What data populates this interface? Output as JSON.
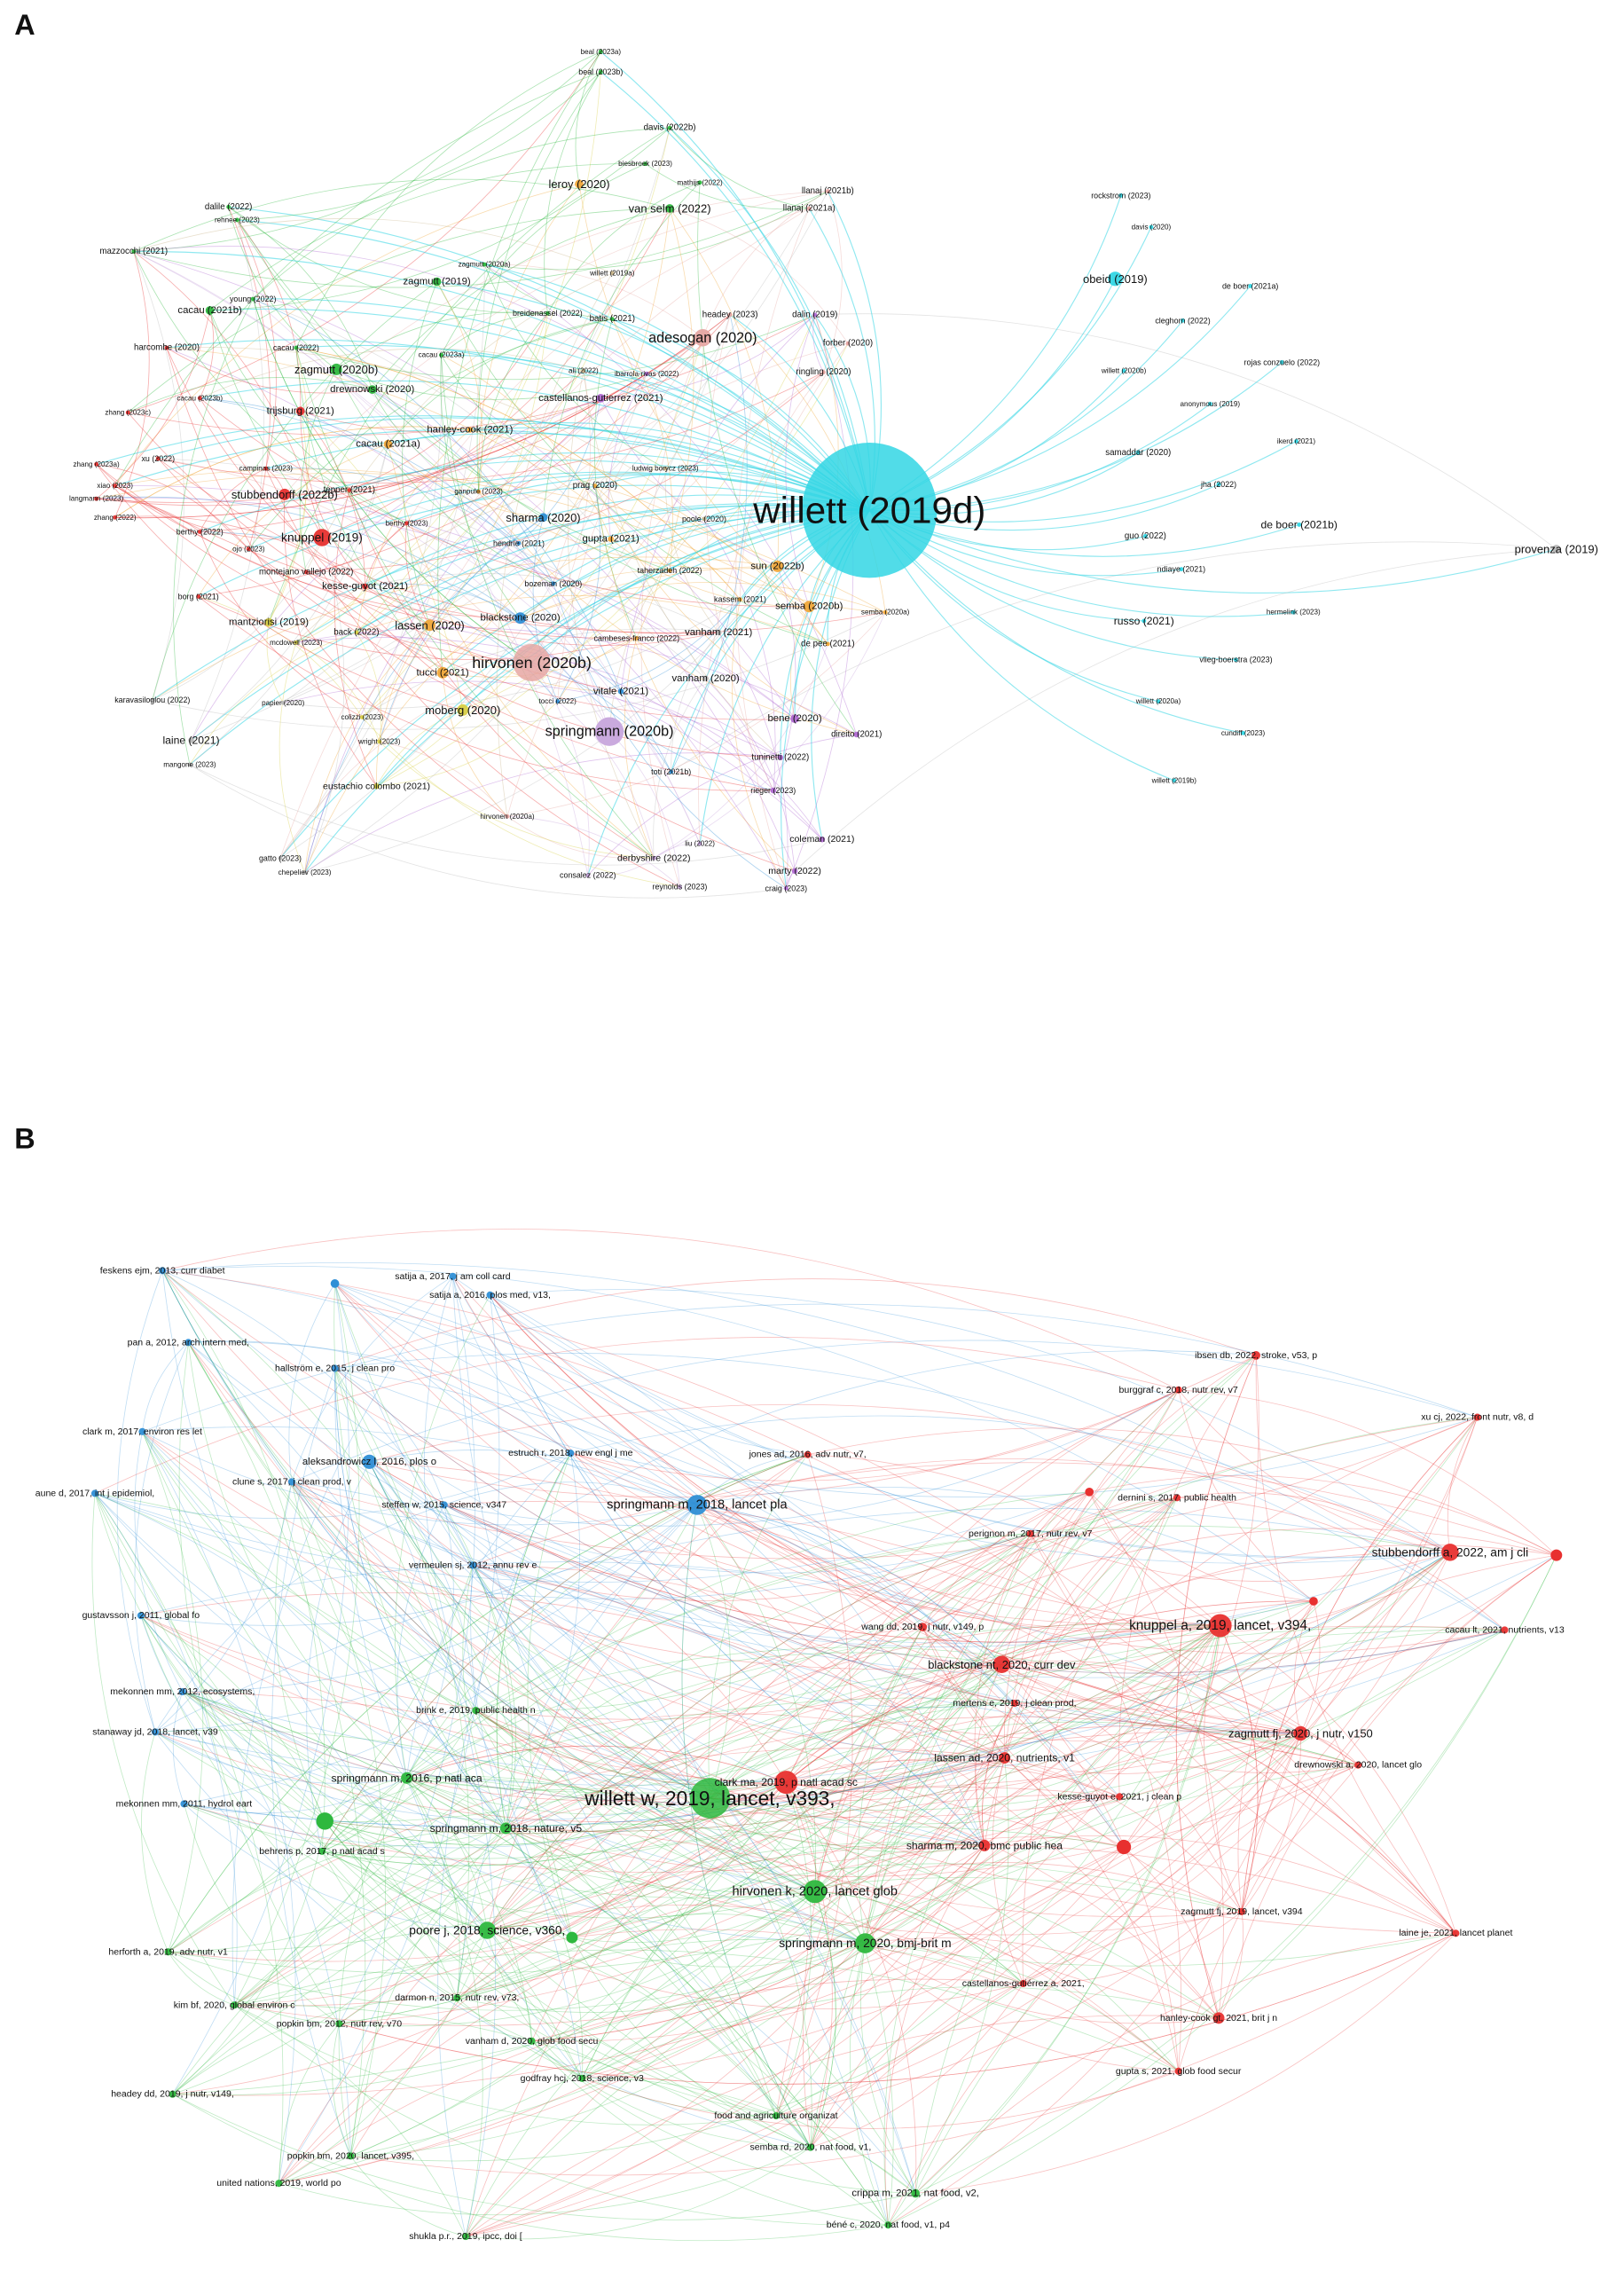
{
  "panels": [
    {
      "label": "A",
      "nodes": [
        "willett (2019d)",
        "obeid (2019)",
        "provenza (2019)",
        "hirvonen (2020b)",
        "springmann (2020b)",
        "adesogan (2020)",
        "knuppel (2019)",
        "leroy (2020)",
        "van selm (2022)",
        "sharma (2020)",
        "lassen (2020)",
        "moberg (2020)",
        "tucci (2021)",
        "blackstone (2020)",
        "sun (2022b)",
        "semba (2020b)",
        "vanham (2021)",
        "vanham (2020)",
        "vitale (2021)",
        "bene (2020)",
        "direito (2021)",
        "tuninetti (2022)",
        "rieger (2023)",
        "coleman (2021)",
        "marty (2022)",
        "craig (2023)",
        "derbyshire (2022)",
        "reynolds (2023)",
        "consalez (2022)",
        "liu (2022)",
        "hirvonen (2020a)",
        "toti (2021b)",
        "eustachio colombo (2021)",
        "laine (2021)",
        "mangone (2023)",
        "gatto (2023)",
        "chepeliev (2023)",
        "karavasiloglou (2022)",
        "papier (2020)",
        "colizzi (2023)",
        "wright (2023)",
        "mantziorisi (2019)",
        "mcdowell (2023)",
        "back (2022)",
        "borg (2021)",
        "kesse-guyot (2021)",
        "montejano vallejo (2022)",
        "ojo (2023)",
        "berthy (2022)",
        "stubbendorff (2022b)",
        "tepper (2021)",
        "berthy (2023)",
        "zhang (2022)",
        "langmann (2023)",
        "xiao (2023)",
        "zhang (2023a)",
        "xu (2022)",
        "campinas (2023)",
        "trijsburg (2021)",
        "cacau (2021a)",
        "zhang (2023c)",
        "cacau (2023b)",
        "harcombe (2020)",
        "cacau (2021b)",
        "young (2022)",
        "cacau (2022)",
        "zagmutt (2020b)",
        "drewnowski (2020)",
        "hanley-cook (2021)",
        "dalile (2022)",
        "rehnee (2023)",
        "mazzocchi (2021)",
        "zagmutt (2019)",
        "zagmutt (2020a)",
        "cacau (2023a)",
        "breidenassel (2022)",
        "batis (2021)",
        "willett (2019a)",
        "ali (2022)",
        "ibarrola-rivas (2022)",
        "castellanos-gutierrez (2021)",
        "ludwig borycz (2023)",
        "prag (2020)",
        "ganpule (2023)",
        "poole (2020)",
        "gupta (2021)",
        "hendrie (2021)",
        "taherzadeh (2022)",
        "bozeman (2020)",
        "kassem (2021)",
        "cambeses-franco (2022)",
        "de pee (2021)",
        "semba (2020a)",
        "tocci (2022)",
        "headey (2023)",
        "dalin (2019)",
        "forber (2020)",
        "ringling (2020)",
        "llanaj (2021b)",
        "llanaj (2021a)",
        "beal (2023a)",
        "beal (2023b)",
        "davis (2022b)",
        "biesbroek (2023)",
        "mathijs (2022)",
        "rockstrom (2023)",
        "davis (2020)",
        "de boer (2021a)",
        "cleghorn (2022)",
        "rojas conzuelo (2022)",
        "willett (2020b)",
        "anonymous (2019)",
        "ikerd (2021)",
        "samaddar (2020)",
        "jha (2022)",
        "de boer (2021b)",
        "guo (2022)",
        "ndiaye (2021)",
        "hermelink (2023)",
        "russo (2021)",
        "vlieg-boerstra (2023)",
        "willett (2020a)",
        "cundiff (2023)",
        "willett (2019b)"
      ]
    },
    {
      "label": "B",
      "nodes": [
        "willett w, 2019, lancet, v393,",
        "springmann m, 2018, lancet pla",
        "knuppel a, 2019, lancet, v394,",
        "stubbendorff a, 2022, am j cli",
        "hirvonen k, 2020, lancet glob",
        "springmann m, 2020, bmj-brit m",
        "poore j, 2018, science, v360,",
        "springmann m, 2018, nature, v5",
        "springmann m, 2016, p natl aca",
        "blackstone nt, 2020, curr dev",
        "zagmutt fj, 2020, j nutr, v150",
        "clark ma, 2019, p natl acad sc",
        "lassen ad, 2020, nutrients, v1",
        "sharma m, 2020, bmc public hea",
        "feskens ejm, 2013, curr diabet",
        "satija a, 2017, j am coll card",
        "satija a, 2016, plos med, v13,",
        "pan a, 2012, arch intern med,",
        "hallström e, 2015, j clean pro",
        "clark m, 2017, environ res let",
        "aleksandrowicz l, 2016, plos o",
        "estruch r, 2018, new engl j me",
        "jones ad, 2016, adv nutr, v7,",
        "ibsen db, 2022, stroke, v53, p",
        "burggraf c, 2018, nutr rev, v7",
        "xu cj, 2022, front nutr, v8, d",
        "dernini s, 2017, public health",
        "aune d, 2017, int j epidemiol,",
        "clune s, 2017, j clean prod, v",
        "steffen w, 2015, science, v347",
        "vermeulen sj, 2012, annu rev e",
        "perignon m, 2017, nutr rev, v7",
        "gustavsson j, 2011, global fo",
        "wang dd, 2019, j nutr, v149, p",
        "cacau lt, 2021, nutrients, v13",
        "mekonnen mm, 2012, ecosystems,",
        "mertens e, 2019, j clean prod,",
        "stanaway jd, 2018, lancet, v39",
        "brink e, 2019, public health n",
        "drewnowski a, 2020, lancet glo",
        "kesse-guyot e, 2021, j clean p",
        "mekonnen mm, 2011, hydrol eart",
        "behrens p, 2017, p natl acad s",
        "zagmutt fj, 2019, lancet, v394",
        "laine je, 2021, lancet planet",
        "herforth a, 2019, adv nutr, v1",
        "castellanos-gutiérrez a, 2021,",
        "darmon n, 2015, nutr rev, v73,",
        "kim bf, 2020, global environ c",
        "popkin bm, 2012, nutr rev, v70",
        "hanley-cook gt, 2021, brit j n",
        "vanham d, 2020, glob food secu",
        "gupta s, 2021, glob food secur",
        "godfray hcj, 2018, science, v3",
        "headey dd, 2019, j nutr, v149,",
        "food and agriculture organizat",
        "semba rd, 2020, nat food, v1,",
        "popkin bm, 2020, lancet, v395,",
        "united nations, 2019, world po",
        "crippa m, 2021, nat food, v2,",
        "shukla p.r., 2019, ipcc, doi [",
        "béné c, 2020, nat food, v1, p4"
      ]
    }
  ]
}
